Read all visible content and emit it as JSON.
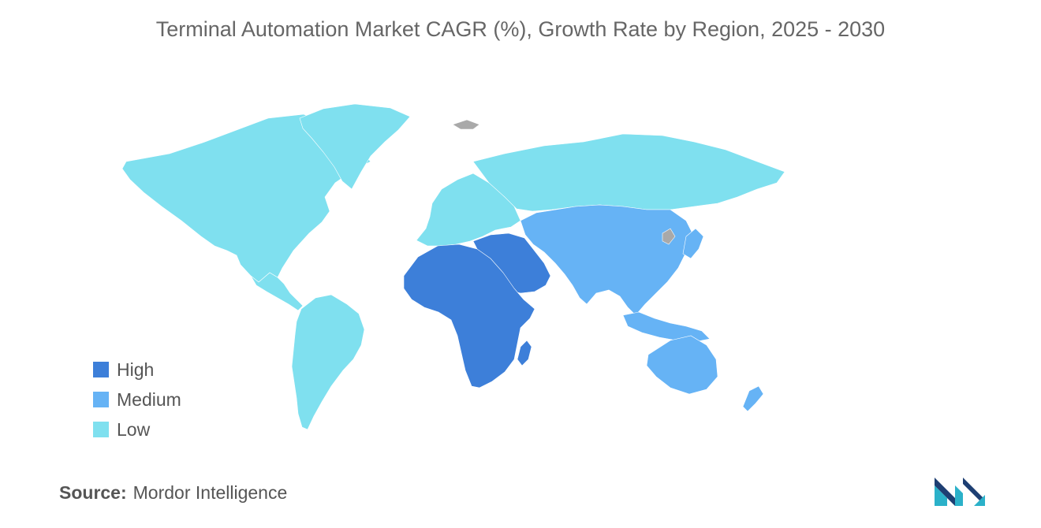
{
  "title": "Terminal Automation Market CAGR (%), Growth Rate by Region, 2025 - 2030",
  "legend": {
    "items": [
      {
        "label": "High",
        "color": "#3d7fd9"
      },
      {
        "label": "Medium",
        "color": "#66b3f5"
      },
      {
        "label": "Low",
        "color": "#7fe0ef"
      }
    ]
  },
  "no_data_color": "#a9a9a9",
  "regions": [
    {
      "name": "North America",
      "level": "Low"
    },
    {
      "name": "South America",
      "level": "Low"
    },
    {
      "name": "Europe",
      "level": "Low"
    },
    {
      "name": "Russia",
      "level": "Low"
    },
    {
      "name": "Middle East and Africa",
      "level": "High"
    },
    {
      "name": "Asia-Pacific",
      "level": "Medium"
    }
  ],
  "source": {
    "label": "Source:",
    "text": "Mordor Intelligence"
  },
  "logo": {
    "colors": [
      "#1e3f73",
      "#2bb1c9"
    ]
  }
}
